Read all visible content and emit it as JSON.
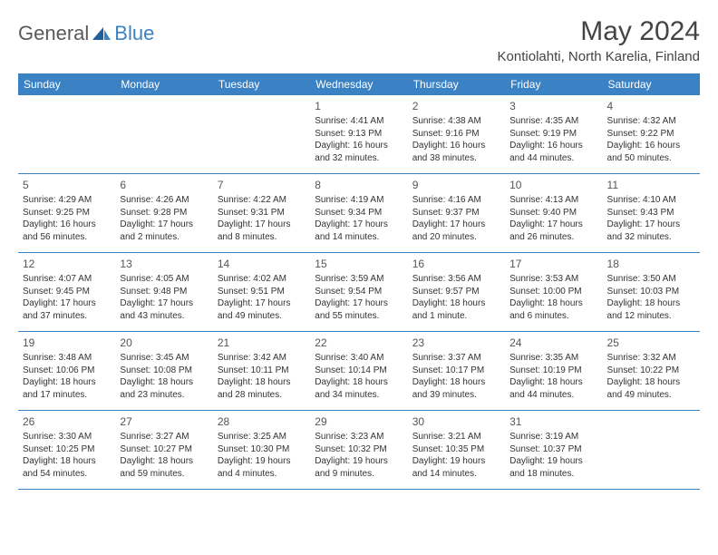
{
  "logo": {
    "part1": "General",
    "part2": "Blue"
  },
  "title": "May 2024",
  "location": "Kontiolahti, North Karelia, Finland",
  "colors": {
    "header_bg": "#3b82c4",
    "header_text": "#ffffff",
    "body_text": "#333333",
    "title_text": "#444444",
    "logo_gray": "#5a5a5a",
    "logo_blue": "#3b82c4",
    "border": "#3b82c4",
    "background": "#ffffff"
  },
  "weekdays": [
    "Sunday",
    "Monday",
    "Tuesday",
    "Wednesday",
    "Thursday",
    "Friday",
    "Saturday"
  ],
  "weeks": [
    [
      null,
      null,
      null,
      {
        "n": "1",
        "sr": "Sunrise: 4:41 AM",
        "ss": "Sunset: 9:13 PM",
        "d1": "Daylight: 16 hours",
        "d2": "and 32 minutes."
      },
      {
        "n": "2",
        "sr": "Sunrise: 4:38 AM",
        "ss": "Sunset: 9:16 PM",
        "d1": "Daylight: 16 hours",
        "d2": "and 38 minutes."
      },
      {
        "n": "3",
        "sr": "Sunrise: 4:35 AM",
        "ss": "Sunset: 9:19 PM",
        "d1": "Daylight: 16 hours",
        "d2": "and 44 minutes."
      },
      {
        "n": "4",
        "sr": "Sunrise: 4:32 AM",
        "ss": "Sunset: 9:22 PM",
        "d1": "Daylight: 16 hours",
        "d2": "and 50 minutes."
      }
    ],
    [
      {
        "n": "5",
        "sr": "Sunrise: 4:29 AM",
        "ss": "Sunset: 9:25 PM",
        "d1": "Daylight: 16 hours",
        "d2": "and 56 minutes."
      },
      {
        "n": "6",
        "sr": "Sunrise: 4:26 AM",
        "ss": "Sunset: 9:28 PM",
        "d1": "Daylight: 17 hours",
        "d2": "and 2 minutes."
      },
      {
        "n": "7",
        "sr": "Sunrise: 4:22 AM",
        "ss": "Sunset: 9:31 PM",
        "d1": "Daylight: 17 hours",
        "d2": "and 8 minutes."
      },
      {
        "n": "8",
        "sr": "Sunrise: 4:19 AM",
        "ss": "Sunset: 9:34 PM",
        "d1": "Daylight: 17 hours",
        "d2": "and 14 minutes."
      },
      {
        "n": "9",
        "sr": "Sunrise: 4:16 AM",
        "ss": "Sunset: 9:37 PM",
        "d1": "Daylight: 17 hours",
        "d2": "and 20 minutes."
      },
      {
        "n": "10",
        "sr": "Sunrise: 4:13 AM",
        "ss": "Sunset: 9:40 PM",
        "d1": "Daylight: 17 hours",
        "d2": "and 26 minutes."
      },
      {
        "n": "11",
        "sr": "Sunrise: 4:10 AM",
        "ss": "Sunset: 9:43 PM",
        "d1": "Daylight: 17 hours",
        "d2": "and 32 minutes."
      }
    ],
    [
      {
        "n": "12",
        "sr": "Sunrise: 4:07 AM",
        "ss": "Sunset: 9:45 PM",
        "d1": "Daylight: 17 hours",
        "d2": "and 37 minutes."
      },
      {
        "n": "13",
        "sr": "Sunrise: 4:05 AM",
        "ss": "Sunset: 9:48 PM",
        "d1": "Daylight: 17 hours",
        "d2": "and 43 minutes."
      },
      {
        "n": "14",
        "sr": "Sunrise: 4:02 AM",
        "ss": "Sunset: 9:51 PM",
        "d1": "Daylight: 17 hours",
        "d2": "and 49 minutes."
      },
      {
        "n": "15",
        "sr": "Sunrise: 3:59 AM",
        "ss": "Sunset: 9:54 PM",
        "d1": "Daylight: 17 hours",
        "d2": "and 55 minutes."
      },
      {
        "n": "16",
        "sr": "Sunrise: 3:56 AM",
        "ss": "Sunset: 9:57 PM",
        "d1": "Daylight: 18 hours",
        "d2": "and 1 minute."
      },
      {
        "n": "17",
        "sr": "Sunrise: 3:53 AM",
        "ss": "Sunset: 10:00 PM",
        "d1": "Daylight: 18 hours",
        "d2": "and 6 minutes."
      },
      {
        "n": "18",
        "sr": "Sunrise: 3:50 AM",
        "ss": "Sunset: 10:03 PM",
        "d1": "Daylight: 18 hours",
        "d2": "and 12 minutes."
      }
    ],
    [
      {
        "n": "19",
        "sr": "Sunrise: 3:48 AM",
        "ss": "Sunset: 10:06 PM",
        "d1": "Daylight: 18 hours",
        "d2": "and 17 minutes."
      },
      {
        "n": "20",
        "sr": "Sunrise: 3:45 AM",
        "ss": "Sunset: 10:08 PM",
        "d1": "Daylight: 18 hours",
        "d2": "and 23 minutes."
      },
      {
        "n": "21",
        "sr": "Sunrise: 3:42 AM",
        "ss": "Sunset: 10:11 PM",
        "d1": "Daylight: 18 hours",
        "d2": "and 28 minutes."
      },
      {
        "n": "22",
        "sr": "Sunrise: 3:40 AM",
        "ss": "Sunset: 10:14 PM",
        "d1": "Daylight: 18 hours",
        "d2": "and 34 minutes."
      },
      {
        "n": "23",
        "sr": "Sunrise: 3:37 AM",
        "ss": "Sunset: 10:17 PM",
        "d1": "Daylight: 18 hours",
        "d2": "and 39 minutes."
      },
      {
        "n": "24",
        "sr": "Sunrise: 3:35 AM",
        "ss": "Sunset: 10:19 PM",
        "d1": "Daylight: 18 hours",
        "d2": "and 44 minutes."
      },
      {
        "n": "25",
        "sr": "Sunrise: 3:32 AM",
        "ss": "Sunset: 10:22 PM",
        "d1": "Daylight: 18 hours",
        "d2": "and 49 minutes."
      }
    ],
    [
      {
        "n": "26",
        "sr": "Sunrise: 3:30 AM",
        "ss": "Sunset: 10:25 PM",
        "d1": "Daylight: 18 hours",
        "d2": "and 54 minutes."
      },
      {
        "n": "27",
        "sr": "Sunrise: 3:27 AM",
        "ss": "Sunset: 10:27 PM",
        "d1": "Daylight: 18 hours",
        "d2": "and 59 minutes."
      },
      {
        "n": "28",
        "sr": "Sunrise: 3:25 AM",
        "ss": "Sunset: 10:30 PM",
        "d1": "Daylight: 19 hours",
        "d2": "and 4 minutes."
      },
      {
        "n": "29",
        "sr": "Sunrise: 3:23 AM",
        "ss": "Sunset: 10:32 PM",
        "d1": "Daylight: 19 hours",
        "d2": "and 9 minutes."
      },
      {
        "n": "30",
        "sr": "Sunrise: 3:21 AM",
        "ss": "Sunset: 10:35 PM",
        "d1": "Daylight: 19 hours",
        "d2": "and 14 minutes."
      },
      {
        "n": "31",
        "sr": "Sunrise: 3:19 AM",
        "ss": "Sunset: 10:37 PM",
        "d1": "Daylight: 19 hours",
        "d2": "and 18 minutes."
      },
      null
    ]
  ]
}
